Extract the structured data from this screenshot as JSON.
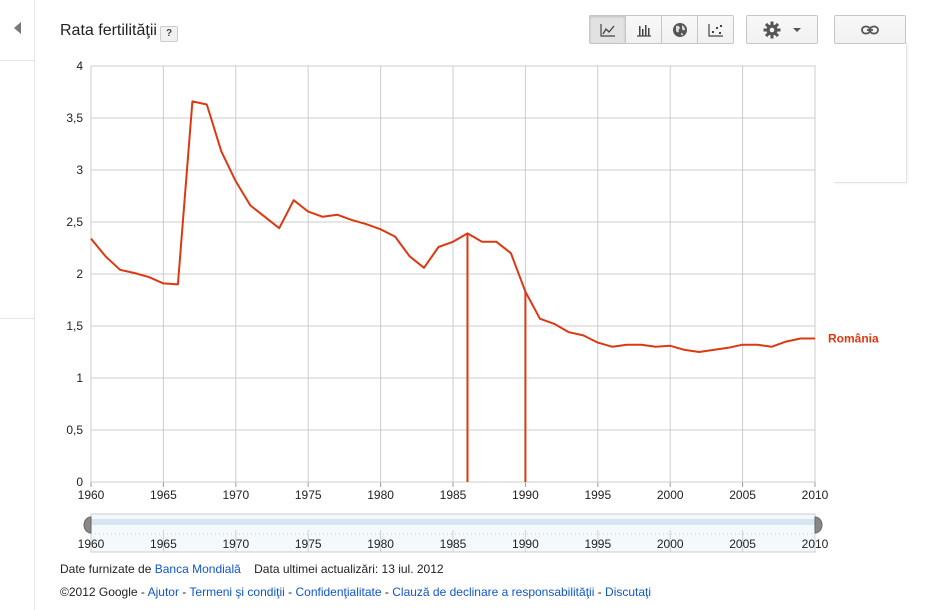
{
  "header": {
    "title": "Rata fertilităţii",
    "help_label": "?"
  },
  "toolbar": {
    "chart_types": [
      {
        "name": "line-chart",
        "active": true
      },
      {
        "name": "bar-chart",
        "active": false
      },
      {
        "name": "map",
        "active": false
      },
      {
        "name": "scatter-chart",
        "active": false
      }
    ],
    "settings_icon": "gear-icon",
    "link_icon": "link-icon"
  },
  "chart_data": {
    "type": "line",
    "x_ticks": [
      1960,
      1965,
      1970,
      1975,
      1980,
      1985,
      1990,
      1995,
      2000,
      2005,
      2010
    ],
    "y_ticks": [
      "0",
      "0,5",
      "1",
      "1,5",
      "2",
      "2,5",
      "3",
      "3,5",
      "4"
    ],
    "xlim": [
      1960,
      2010
    ],
    "ylim": [
      0,
      4
    ],
    "grid": true,
    "series": [
      {
        "name": "România",
        "color": "#dc3912",
        "x": [
          1960,
          1961,
          1962,
          1963,
          1964,
          1965,
          1966,
          1967,
          1968,
          1969,
          1970,
          1971,
          1972,
          1973,
          1974,
          1975,
          1976,
          1977,
          1978,
          1979,
          1980,
          1981,
          1982,
          1983,
          1984,
          1985,
          1986,
          1987,
          1988,
          1989,
          1990,
          1991,
          1992,
          1993,
          1994,
          1995,
          1996,
          1997,
          1998,
          1999,
          2000,
          2001,
          2002,
          2003,
          2004,
          2005,
          2006,
          2007,
          2008,
          2009,
          2010
        ],
        "y": [
          2.34,
          2.17,
          2.04,
          2.01,
          1.97,
          1.91,
          1.9,
          3.66,
          3.63,
          3.18,
          2.89,
          2.66,
          2.55,
          2.44,
          2.71,
          2.6,
          2.55,
          2.57,
          2.52,
          2.48,
          2.43,
          2.36,
          2.17,
          2.06,
          2.26,
          2.31,
          2.39,
          2.31,
          2.31,
          2.2,
          1.83,
          1.57,
          1.52,
          1.44,
          1.41,
          1.34,
          1.3,
          1.32,
          1.32,
          1.3,
          1.31,
          1.27,
          1.25,
          1.27,
          1.29,
          1.32,
          1.32,
          1.3,
          1.35,
          1.38,
          1.38
        ]
      }
    ],
    "markers": [
      1986,
      1990
    ],
    "range_slider": {
      "start": 1960,
      "end": 2010
    }
  },
  "footer": {
    "source_prefix": "Date furnizate de",
    "source_link": "Banca Mondială",
    "updated": "Data ultimei actualizări: 13 iul. 2012",
    "copyright": "©2012 Google",
    "separator": "-",
    "links": [
      "Ajutor",
      "Termeni şi condiţii",
      "Confidenţialitate",
      "Clauză de declinare a responsabilităţii",
      "Discutaţi"
    ]
  }
}
